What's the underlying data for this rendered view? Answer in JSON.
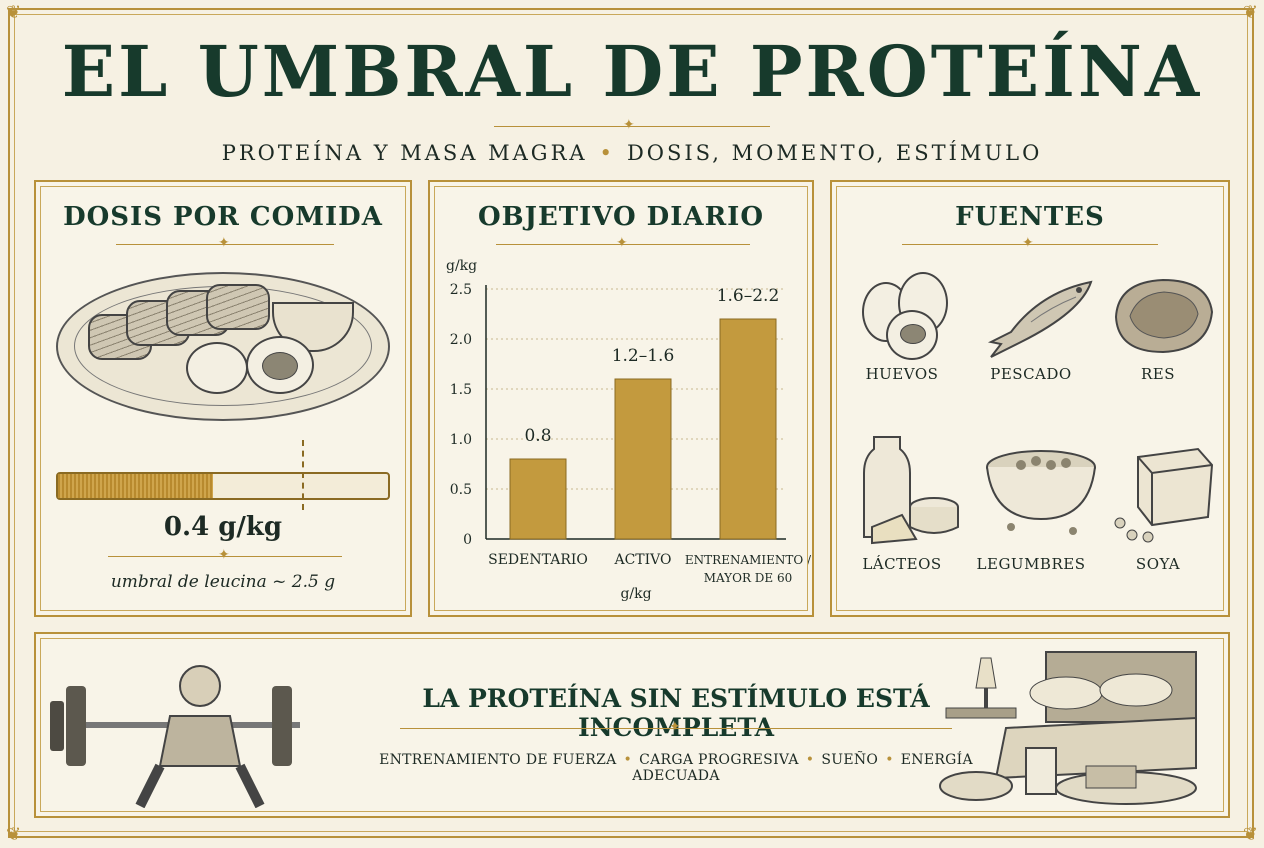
{
  "title": "EL UMBRAL DE PROTEÍNA",
  "subtitle": {
    "left": "PROTEÍNA Y MASA MAGRA",
    "right": "DOSIS, MOMENTO, ESTÍMULO"
  },
  "panel_dose": {
    "title": "DOSIS POR COMIDA",
    "value": "0.4 g/kg",
    "fill_fraction": 0.47,
    "note": "umbral de leucina ~ 2.5 g"
  },
  "panel_daily": {
    "title": "OBJETIVO DIARIO"
  },
  "chart_data": {
    "type": "bar",
    "ylabel": "g/kg",
    "xlabel": "g/kg",
    "ylim": [
      0,
      2.5
    ],
    "yticks": [
      "0",
      "0.5",
      "1.0",
      "1.5",
      "2.0",
      "2.5"
    ],
    "categories": [
      "SEDENTARIO",
      "ACTIVO",
      "ENTRENAMIENTO / MAYOR DE 60"
    ],
    "category_lines": [
      [
        "SEDENTARIO"
      ],
      [
        "ACTIVO"
      ],
      [
        "ENTRENAMIENTO /",
        "MAYOR DE 60"
      ]
    ],
    "values": [
      0.8,
      1.6,
      2.2
    ],
    "data_labels": [
      "0.8",
      "1.2–1.6",
      "1.6–2.2"
    ],
    "grid": true,
    "bar_color": "#c39a3e"
  },
  "panel_sources": {
    "title": "FUENTES",
    "items": [
      {
        "label": "HUEVOS",
        "icon": "eggs-icon"
      },
      {
        "label": "PESCADO",
        "icon": "fish-icon"
      },
      {
        "label": "RES",
        "icon": "steak-icon"
      },
      {
        "label": "LÁCTEOS",
        "icon": "dairy-icon"
      },
      {
        "label": "LEGUMBRES",
        "icon": "legumes-icon"
      },
      {
        "label": "SOYA",
        "icon": "tofu-icon"
      }
    ]
  },
  "banner": {
    "title": "LA PROTEÍNA SIN ESTÍMULO ESTÁ INCOMPLETA",
    "items": [
      "ENTRENAMIENTO DE FUERZA",
      "CARGA PROGRESIVA",
      "SUEÑO",
      "ENERGÍA ADECUADA"
    ]
  },
  "colors": {
    "gold": "#b8913a",
    "green": "#173a2c",
    "paper": "#f6f1e3"
  }
}
